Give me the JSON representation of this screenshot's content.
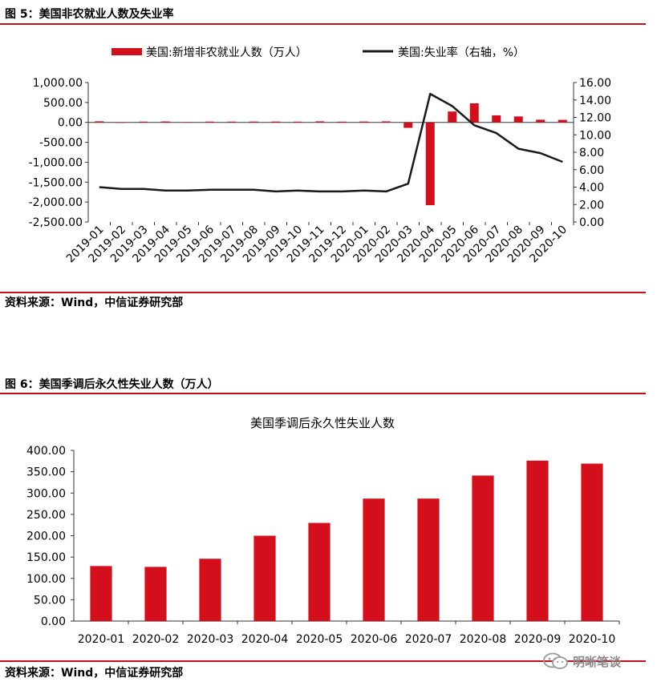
{
  "fig5": {
    "title": "图 5：美国非农就业人数及失业率",
    "source": "资料来源：Wind，中信证券研究部"
  },
  "fig6": {
    "title": "图 6：美国季调后永久性失业人数（万人）",
    "source": "资料来源：Wind，中信证券研究部"
  },
  "watermark": "明晰笔谈",
  "colors": {
    "bar": "#d40f1c",
    "line": "#1a1a1a",
    "rule": "#c0101a"
  },
  "chart_data": [
    {
      "type": "bar",
      "title": "",
      "categories": [
        "2019-01",
        "2019-02",
        "2019-03",
        "2019-04",
        "2019-05",
        "2019-06",
        "2019-07",
        "2019-08",
        "2019-09",
        "2019-10",
        "2019-11",
        "2019-12",
        "2020-01",
        "2020-02",
        "2020-03",
        "2020-04",
        "2020-05",
        "2020-06",
        "2020-07",
        "2020-08",
        "2020-09",
        "2020-10"
      ],
      "series": [
        {
          "name": "美国:新增非农就业人数（万人）",
          "type": "bar",
          "axis": "left",
          "values": [
            26.9,
            0.1,
            18.9,
            23.1,
            8.5,
            19.3,
            19.4,
            20.7,
            20.8,
            18.5,
            26.1,
            18.4,
            21.4,
            25.1,
            -137.3,
            -2078.7,
            272.5,
            478.1,
            176.1,
            148.9,
            67.2,
            63.8
          ]
        },
        {
          "name": "美国:失业率（右轴，%）",
          "type": "line",
          "axis": "right",
          "values": [
            4.0,
            3.8,
            3.8,
            3.6,
            3.6,
            3.7,
            3.7,
            3.7,
            3.5,
            3.6,
            3.5,
            3.5,
            3.6,
            3.5,
            4.4,
            14.7,
            13.3,
            11.1,
            10.2,
            8.4,
            7.9,
            6.9
          ]
        }
      ],
      "y_left": {
        "ylim": [
          -2500,
          1000
        ],
        "ticks": [
          "1,000.00",
          "500.00",
          "0.00",
          "-500.00",
          "-1,000.00",
          "-1,500.00",
          "-2,000.00",
          "-2,500.00"
        ]
      },
      "y_right": {
        "ylim": [
          0,
          16
        ],
        "ticks": [
          "16.00",
          "14.00",
          "12.00",
          "10.00",
          "8.00",
          "6.00",
          "4.00",
          "2.00",
          "0.00"
        ]
      },
      "legend_position": "top"
    },
    {
      "type": "bar",
      "title": "美国季调后永久性失业人数",
      "categories": [
        "2020-01",
        "2020-02",
        "2020-03",
        "2020-04",
        "2020-05",
        "2020-06",
        "2020-07",
        "2020-08",
        "2020-09",
        "2020-10"
      ],
      "values": [
        129,
        127,
        146,
        200,
        230,
        287,
        287,
        341,
        376,
        369
      ],
      "ylim": [
        0,
        400
      ],
      "yticks": [
        "400.00",
        "350.00",
        "300.00",
        "250.00",
        "200.00",
        "150.00",
        "100.00",
        "50.00",
        "0.00"
      ]
    }
  ]
}
